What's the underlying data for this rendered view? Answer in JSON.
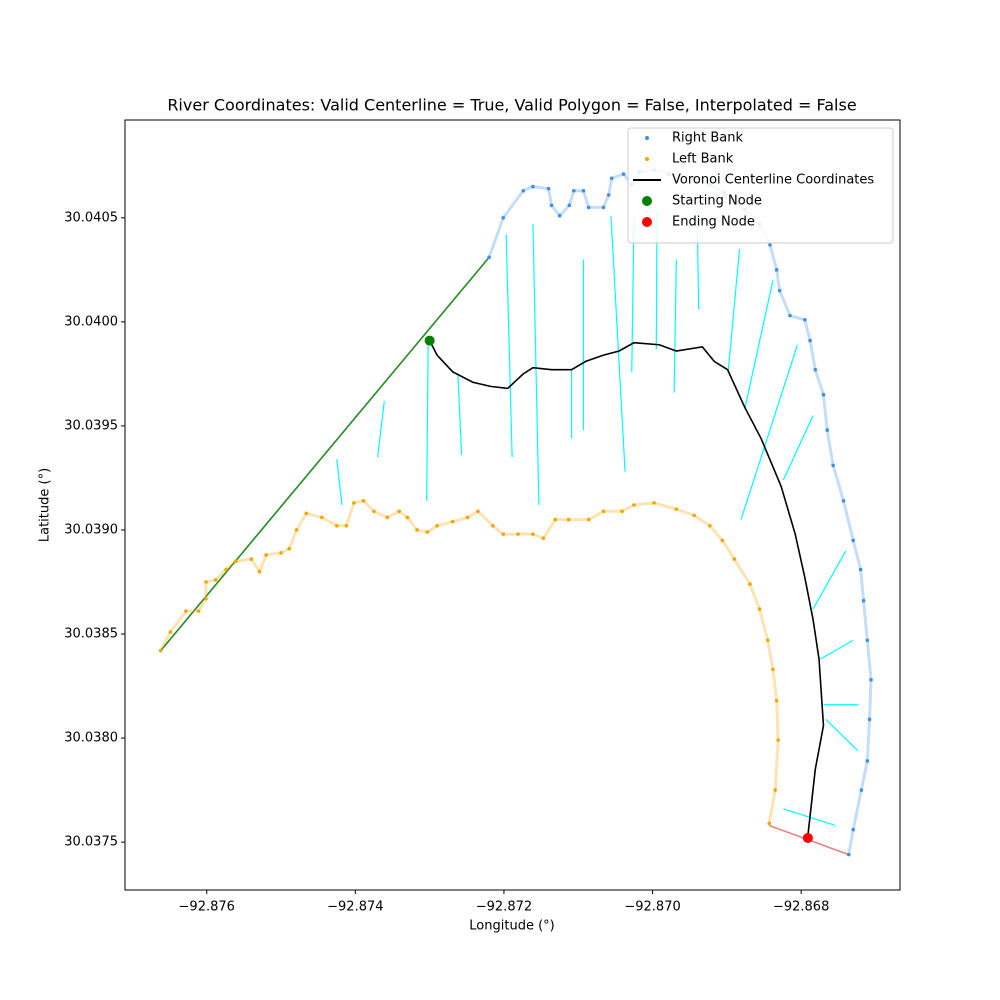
{
  "chart_data": {
    "type": "scatter",
    "title": "River Coordinates: Valid Centerline = True, Valid Polygon = False, Interpolated = False",
    "x_label": "Longitude (°)",
    "y_label": "Latitude (°)",
    "xlim": [
      -92.8771,
      -92.86667
    ],
    "ylim": [
      30.03727,
      30.04097
    ],
    "xticks": [
      {
        "value": -92.876,
        "label": "−92.876"
      },
      {
        "value": -92.874,
        "label": "−92.874"
      },
      {
        "value": -92.872,
        "label": "−92.872"
      },
      {
        "value": -92.87,
        "label": "−92.870"
      },
      {
        "value": -92.868,
        "label": "−92.868"
      }
    ],
    "yticks": [
      30.0375,
      {
        "value": 30.038,
        "label": "30.0380"
      },
      30.0385,
      {
        "value": 30.039,
        "label": "30.0390"
      },
      30.0395,
      {
        "value": 30.04,
        "label": "30.0400"
      },
      30.0405
    ],
    "legend": "upper right",
    "series": [
      {
        "kind": "segments",
        "color": "#00ffff",
        "x": [
          -92.87302,
          -92.87304,
          null,
          -92.87262,
          -92.87257,
          null,
          -92.87361,
          -92.8737,
          null,
          -92.87425,
          -92.87418,
          null,
          -92.87197,
          -92.87189,
          null,
          -92.87161,
          -92.87153,
          null,
          -92.87109,
          -92.87109,
          null,
          -92.87093,
          -92.87093,
          null,
          -92.87056,
          -92.87037,
          null,
          -92.87025,
          -92.87028,
          null,
          -92.86994,
          -92.86995,
          null,
          -92.86968,
          -92.86971,
          null,
          -92.8694,
          -92.86938,
          null,
          -92.86883,
          -92.86898,
          null,
          -92.86838,
          -92.86876,
          null,
          -92.86805,
          -92.86881,
          null,
          -92.86784,
          -92.86824,
          null,
          -92.8674,
          -92.86784,
          null,
          -92.8673,
          -92.86774,
          null,
          -92.86723,
          -92.8677,
          null,
          -92.86724,
          -92.86767,
          null,
          -92.86754,
          -92.86824
        ],
        "y": [
          30.03991,
          30.03914,
          null,
          30.03975,
          30.03936,
          null,
          30.03962,
          30.03935,
          null,
          30.03934,
          30.03912,
          null,
          30.04042,
          30.03935,
          null,
          30.04047,
          30.03912,
          null,
          30.03977,
          30.03944,
          null,
          30.0403,
          30.03948,
          null,
          30.04051,
          30.03928,
          null,
          30.04051,
          30.03976,
          null,
          30.04054,
          30.03987,
          null,
          30.0403,
          30.03966,
          null,
          30.04054,
          30.04006,
          null,
          30.04035,
          30.03977,
          null,
          30.0402,
          30.03958,
          null,
          30.03989,
          30.03905,
          null,
          30.03955,
          30.03924,
          null,
          30.0389,
          30.03862,
          null,
          30.03847,
          30.03838,
          null,
          30.03816,
          30.03816,
          null,
          30.03794,
          30.03809,
          null,
          30.03758,
          30.03766
        ]
      },
      {
        "kind": "line",
        "color": "#228b22",
        "x": [
          -92.87662,
          -92.8722
        ],
        "y": [
          30.03842,
          30.04031
        ]
      },
      {
        "kind": "line",
        "color": "#f08080",
        "x": [
          -92.86843,
          -92.86736
        ],
        "y": [
          30.03758,
          30.03744
        ]
      },
      {
        "name": "Right Bank",
        "kind": "points",
        "color": "#3d8fe8",
        "x": [
          -92.8722,
          -92.87201,
          -92.87174,
          -92.87161,
          -92.8714,
          -92.87136,
          -92.87125,
          -92.87112,
          -92.87106,
          -92.87093,
          -92.87086,
          -92.87066,
          -92.87059,
          -92.87055,
          -92.87039,
          -92.87028,
          -92.87018,
          -92.86998,
          -92.86978,
          -92.86944,
          -92.86923,
          -92.86903,
          -92.86876,
          -92.86856,
          -92.86842,
          -92.86833,
          -92.86829,
          -92.86815,
          -92.86795,
          -92.86788,
          -92.86781,
          -92.8677,
          -92.86765,
          -92.86757,
          -92.86743,
          -92.8673,
          -92.8672,
          -92.86716,
          -92.86711,
          -92.86706,
          -92.86708,
          -92.86711,
          -92.86719,
          -92.8673,
          -92.86736
        ],
        "y": [
          30.04031,
          30.0405,
          30.04063,
          30.04065,
          30.04064,
          30.04056,
          30.04051,
          30.04056,
          30.04063,
          30.04063,
          30.04055,
          30.04055,
          30.04061,
          30.04069,
          30.04071,
          30.04066,
          30.04072,
          30.04073,
          30.04071,
          30.04069,
          30.04066,
          30.04062,
          30.04054,
          30.04047,
          30.04037,
          30.04025,
          30.04015,
          30.04003,
          30.04001,
          30.03991,
          30.03977,
          30.03965,
          30.03948,
          30.03931,
          30.03914,
          30.03895,
          30.03881,
          30.03866,
          30.03847,
          30.03828,
          30.03809,
          30.03789,
          30.03775,
          30.03756,
          30.03744
        ]
      },
      {
        "name": "Left Bank",
        "kind": "points",
        "color": "#f5a300",
        "x": [
          -92.87662,
          -92.87649,
          -92.87628,
          -92.87611,
          -92.87601,
          -92.87601,
          -92.87588,
          -92.87574,
          -92.87561,
          -92.8754,
          -92.87529,
          -92.8752,
          -92.875,
          -92.87489,
          -92.87479,
          -92.87466,
          -92.87445,
          -92.87425,
          -92.87412,
          -92.87402,
          -92.87389,
          -92.87375,
          -92.87357,
          -92.87341,
          -92.8733,
          -92.87317,
          -92.87303,
          -92.8729,
          -92.87269,
          -92.87249,
          -92.87235,
          -92.87215,
          -92.87201,
          -92.87181,
          -92.87161,
          -92.87147,
          -92.87131,
          -92.87113,
          -92.87086,
          -92.87066,
          -92.87041,
          -92.87025,
          -92.86998,
          -92.86968,
          -92.86944,
          -92.86923,
          -92.86906,
          -92.8689,
          -92.86869,
          -92.86856,
          -92.86845,
          -92.86838,
          -92.86833,
          -92.86831,
          -92.86835,
          -92.86843
        ],
        "y": [
          30.03842,
          30.03851,
          30.03861,
          30.03861,
          30.03867,
          30.03875,
          30.03876,
          30.03881,
          30.03885,
          30.03886,
          30.0388,
          30.03888,
          30.03889,
          30.03891,
          30.039,
          30.03908,
          30.03906,
          30.03902,
          30.03902,
          30.03913,
          30.03914,
          30.03909,
          30.03906,
          30.03909,
          30.03906,
          30.039,
          30.03899,
          30.03902,
          30.03904,
          30.03906,
          30.03909,
          30.03902,
          30.03898,
          30.03898,
          30.03898,
          30.03896,
          30.03905,
          30.03905,
          30.03905,
          30.03909,
          30.03909,
          30.03912,
          30.03913,
          30.0391,
          30.03907,
          30.03902,
          30.03895,
          30.03886,
          30.03874,
          30.03862,
          30.03847,
          30.03833,
          30.03818,
          30.03799,
          30.03775,
          30.03759
        ]
      },
      {
        "name": "Voronoi Centerline Coordinates",
        "kind": "line",
        "color": "#000000",
        "x": [
          -92.873,
          -92.8729,
          -92.87269,
          -92.87242,
          -92.87218,
          -92.87195,
          -92.87174,
          -92.87161,
          -92.87136,
          -92.87109,
          -92.8709,
          -92.87066,
          -92.87045,
          -92.87025,
          -92.86991,
          -92.86968,
          -92.86933,
          -92.86917,
          -92.86899,
          -92.86876,
          -92.86854,
          -92.86827,
          -92.86808,
          -92.86795,
          -92.86784,
          -92.86776,
          -92.8677,
          -92.86781,
          -92.86791
        ],
        "y": [
          30.03991,
          30.03984,
          30.03976,
          30.03971,
          30.03969,
          30.03968,
          30.03975,
          30.03978,
          30.03977,
          30.03977,
          30.03981,
          30.03984,
          30.03986,
          30.0399,
          30.03989,
          30.03986,
          30.03988,
          30.03981,
          30.03977,
          30.03959,
          30.03944,
          30.03921,
          30.03898,
          30.03877,
          30.03857,
          30.03838,
          30.03806,
          30.03785,
          30.03753
        ]
      },
      {
        "name": "Starting Node",
        "kind": "node",
        "color": "#008000",
        "x": [
          -92.873
        ],
        "y": [
          30.03991
        ]
      },
      {
        "name": "Ending Node",
        "kind": "node",
        "color": "#ff0000",
        "x": [
          -92.86791
        ],
        "y": [
          30.03752
        ]
      }
    ]
  }
}
